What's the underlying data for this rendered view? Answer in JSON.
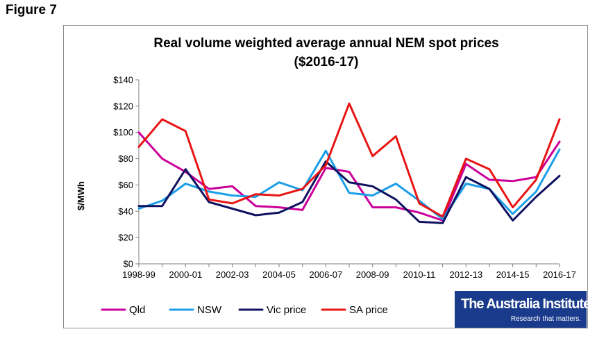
{
  "figure_label": "Figure 7",
  "chart_data": {
    "type": "line",
    "title": "Real volume weighted average annual NEM spot prices",
    "subtitle": "($2016-17)",
    "xlabel": "",
    "ylabel": "$/MWh",
    "ylim": [
      0,
      140
    ],
    "yticks": [
      "$0",
      "$20",
      "$40",
      "$60",
      "$80",
      "$100",
      "$120",
      "$140"
    ],
    "grid": false,
    "legend": "bottom",
    "x": [
      "1998-99",
      "1999-00",
      "2000-01",
      "2001-02",
      "2002-03",
      "2003-04",
      "2004-05",
      "2005-06",
      "2006-07",
      "2007-08",
      "2008-09",
      "2009-10",
      "2010-11",
      "2011-12",
      "2012-13",
      "2013-14",
      "2014-15",
      "2015-16",
      "2016-17"
    ],
    "xtick_labels": [
      "1998-99",
      "2000-01",
      "2002-03",
      "2004-05",
      "2006-07",
      "2008-09",
      "2010-11",
      "2012-13",
      "2014-15",
      "2016-17"
    ],
    "series": [
      {
        "name": "Qld",
        "color": "#cc0099",
        "values": [
          100,
          80,
          70,
          57,
          59,
          44,
          43,
          41,
          73,
          70,
          43,
          43,
          39,
          33,
          76,
          64,
          63,
          66,
          93
        ]
      },
      {
        "name": "NSW",
        "color": "#1b9ee8",
        "values": [
          42,
          48,
          61,
          55,
          52,
          51,
          62,
          56,
          86,
          54,
          52,
          61,
          48,
          34,
          61,
          57,
          38,
          55,
          87
        ]
      },
      {
        "name": "Vic price",
        "color": "#0f1260",
        "values": [
          44,
          44,
          72,
          47,
          42,
          37,
          39,
          47,
          78,
          62,
          59,
          49,
          32,
          31,
          66,
          57,
          33,
          51,
          67
        ]
      },
      {
        "name": "SA price",
        "color": "#e81414",
        "values": [
          89,
          110,
          101,
          49,
          46,
          53,
          52,
          57,
          75,
          122,
          82,
          97,
          46,
          36,
          80,
          72,
          43,
          64,
          110
        ]
      }
    ]
  },
  "logo": {
    "name": "The Australia Institute",
    "tagline": "Research that matters."
  }
}
